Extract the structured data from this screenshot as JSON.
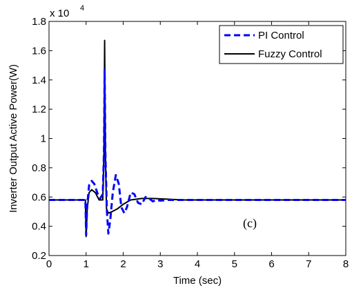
{
  "chart_data": {
    "type": "line",
    "xlabel": "Time (sec)",
    "ylabel": "Inverter Output Active Power(W)",
    "exponent_label": "x 10",
    "exponent_power": "4",
    "xlim": [
      0,
      8
    ],
    "ylim": [
      2000,
      18000
    ],
    "xticks": [
      0,
      1,
      2,
      3,
      4,
      5,
      6,
      7,
      8
    ],
    "yticks": [
      2000,
      4000,
      6000,
      8000,
      10000,
      12000,
      14000,
      16000,
      18000
    ],
    "ytick_labels": [
      "0.2",
      "0.4",
      "0.6",
      "0.8",
      "1",
      "1.2",
      "1.4",
      "1.6",
      "1.8"
    ],
    "grid": false,
    "legend_position": "top-right",
    "annotation": "(c)",
    "series": [
      {
        "name": "PI Control",
        "color": "#0000ff",
        "style": "dashed",
        "x": [
          0,
          0.98,
          1.0,
          1.03,
          1.08,
          1.15,
          1.22,
          1.3,
          1.38,
          1.45,
          1.48,
          1.5,
          1.52,
          1.56,
          1.6,
          1.65,
          1.72,
          1.8,
          1.88,
          1.95,
          2.03,
          2.1,
          2.2,
          2.3,
          2.4,
          2.5,
          2.6,
          2.7,
          2.8,
          2.9,
          3.0,
          3.2,
          3.5,
          4,
          5,
          6,
          7,
          8
        ],
        "y": [
          5800,
          5800,
          3400,
          5500,
          6800,
          7100,
          6900,
          6300,
          5900,
          6200,
          9000,
          14700,
          9000,
          5000,
          3500,
          4400,
          6300,
          7500,
          6900,
          5300,
          4900,
          5300,
          6300,
          6200,
          5600,
          5500,
          6000,
          5900,
          5700,
          5800,
          5750,
          5800,
          5800,
          5800,
          5800,
          5800,
          5800,
          5800
        ]
      },
      {
        "name": "Fuzzy Control",
        "color": "#000000",
        "style": "solid",
        "x": [
          0,
          0.98,
          1.0,
          1.03,
          1.08,
          1.15,
          1.25,
          1.35,
          1.45,
          1.48,
          1.5,
          1.52,
          1.55,
          1.6,
          1.7,
          1.85,
          2.0,
          2.2,
          2.5,
          2.8,
          3.2,
          3.6,
          4,
          5,
          6,
          7,
          8
        ],
        "y": [
          5800,
          5800,
          3300,
          5200,
          6300,
          6500,
          6300,
          5800,
          5800,
          9000,
          16700,
          9000,
          5200,
          4900,
          5000,
          5200,
          5500,
          5800,
          5900,
          5900,
          5850,
          5800,
          5800,
          5800,
          5800,
          5800,
          5800
        ]
      }
    ]
  }
}
